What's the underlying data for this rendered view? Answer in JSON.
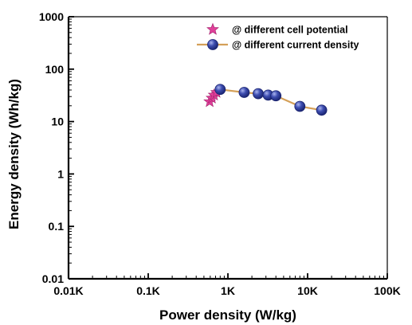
{
  "chart_data": {
    "type": "scatter",
    "xlabel": "Power density (W/kg)",
    "ylabel": "Energy density (Wh/kg)",
    "xscale": "log",
    "yscale": "log",
    "xlim": [
      10,
      100000
    ],
    "ylim": [
      0.01,
      1000
    ],
    "x_ticks": [
      10,
      100,
      1000,
      10000,
      100000
    ],
    "x_tick_labels": [
      "0.01K",
      "0.1K",
      "1K",
      "10K",
      "100K"
    ],
    "y_ticks": [
      0.01,
      0.1,
      1,
      10,
      100,
      1000
    ],
    "y_tick_labels": [
      "0.01",
      "0.1",
      "1",
      "10",
      "100",
      "1000"
    ],
    "legend_position": "top-right",
    "grid": false,
    "series": [
      {
        "name": "@ different cell potential",
        "marker": "star",
        "color": "#e0409a",
        "line": false,
        "points": [
          {
            "x": 590,
            "y": 24
          },
          {
            "x": 630,
            "y": 28
          },
          {
            "x": 670,
            "y": 32
          },
          {
            "x": 720,
            "y": 36
          }
        ]
      },
      {
        "name": "@ different current density",
        "marker": "circle",
        "color": "#2f3f9e",
        "line_color": "#d4a058",
        "line": true,
        "points": [
          {
            "x": 800,
            "y": 41
          },
          {
            "x": 1600,
            "y": 36
          },
          {
            "x": 2400,
            "y": 34
          },
          {
            "x": 3200,
            "y": 32
          },
          {
            "x": 4000,
            "y": 31
          },
          {
            "x": 8000,
            "y": 19.5
          },
          {
            "x": 15000,
            "y": 16.5
          }
        ]
      }
    ]
  }
}
